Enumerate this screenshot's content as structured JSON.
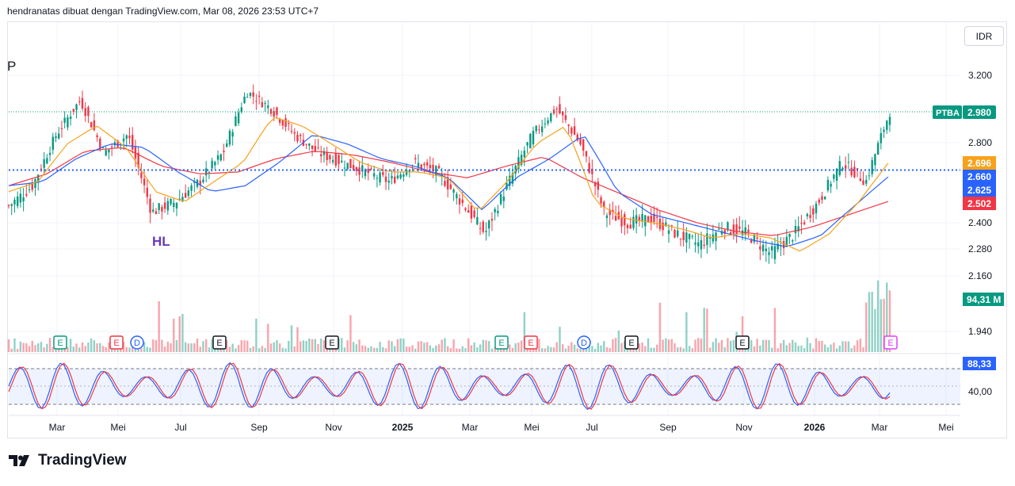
{
  "header": {
    "attribution": "hendranatas dibuat dengan TradingView.com, Mar 08, 2026 23:53 UTC+7"
  },
  "currency_button": "IDR",
  "footer": {
    "brand": "TradingView"
  },
  "colors": {
    "up": "#089981",
    "down": "#f23645",
    "ma_fast": "#f7a21b",
    "ma_mid": "#2962ff",
    "ma_slow": "#f23645",
    "oscillator_k": "#2962ff",
    "oscillator_d": "#f23645",
    "level_line": "#2962ff"
  },
  "chart_data": [
    {
      "type": "line",
      "title": "P",
      "series_label": "PTBA",
      "y_scale": "log",
      "y_ticks": [
        "3.200",
        "2.800",
        "2.400",
        "2.280",
        "2.160",
        "1.940"
      ],
      "x_ticks": [
        "Mar",
        "Mei",
        "Jul",
        "Sep",
        "Nov",
        "2025",
        "Mar",
        "Mei",
        "Jul",
        "Sep",
        "Nov",
        "2026",
        "Mar",
        "Mei"
      ],
      "price_labels": [
        {
          "text": "PTBA",
          "value": "2.980",
          "color": "#089981"
        },
        {
          "text": "",
          "value": "2.696",
          "color": "#f7a21b"
        },
        {
          "text": "",
          "value": "2.660",
          "color": "#2962ff"
        },
        {
          "text": "",
          "value": "2.625",
          "color": "#2962ff"
        },
        {
          "text": "",
          "value": "2.502",
          "color": "#f23645"
        },
        {
          "text": "",
          "value": "94,31 M",
          "color": "#089981"
        }
      ],
      "horizontal_line": 2660,
      "last_price": 2980,
      "annotations": [
        {
          "text": "HL",
          "color": "#673ab7"
        }
      ],
      "event_markers": [
        {
          "label": "E",
          "style": "earnings-up"
        },
        {
          "label": "E",
          "style": "earnings-down"
        },
        {
          "label": "D",
          "style": "dividend"
        },
        {
          "label": "E",
          "style": "earnings"
        },
        {
          "label": "E",
          "style": "earnings"
        },
        {
          "label": "E",
          "style": "earnings-up"
        },
        {
          "label": "E",
          "style": "earnings-down"
        },
        {
          "label": "D",
          "style": "dividend"
        },
        {
          "label": "E",
          "style": "earnings"
        },
        {
          "label": "E",
          "style": "earnings"
        },
        {
          "label": "E",
          "style": "earnings-future"
        }
      ],
      "close_anchors": [
        2480,
        2580,
        2850,
        3050,
        2750,
        2850,
        2450,
        2500,
        2600,
        2750,
        3100,
        3000,
        2850,
        2750,
        2700,
        2650,
        2600,
        2700,
        2650,
        2500,
        2350,
        2600,
        2850,
        3000,
        2800,
        2450,
        2400,
        2420,
        2350,
        2300,
        2380,
        2350,
        2260,
        2350,
        2500,
        2700,
        2600,
        2980
      ],
      "ma_fast_anchors": [
        2550,
        2600,
        2800,
        2900,
        2780,
        2550,
        2500,
        2600,
        2700,
        2950,
        2900,
        2800,
        2700,
        2650,
        2650,
        2620,
        2450,
        2600,
        2800,
        2900,
        2500,
        2420,
        2400,
        2370,
        2330,
        2350,
        2330,
        2270,
        2350,
        2500,
        2696
      ],
      "ma_mid_anchors": [
        2580,
        2600,
        2720,
        2800,
        2780,
        2650,
        2550,
        2580,
        2700,
        2850,
        2800,
        2720,
        2680,
        2620,
        2460,
        2620,
        2720,
        2850,
        2550,
        2440,
        2400,
        2360,
        2320,
        2290,
        2340,
        2480,
        2625
      ],
      "ma_slow_anchors": [
        2580,
        2640,
        2760,
        2780,
        2680,
        2640,
        2650,
        2720,
        2760,
        2740,
        2700,
        2650,
        2620,
        2680,
        2730,
        2620,
        2540,
        2460,
        2400,
        2360,
        2340,
        2380,
        2440,
        2502
      ],
      "oscillator": {
        "levels": [
          80,
          20
        ],
        "ticks": [
          "88,33",
          "40,00"
        ],
        "last_value": 88.33
      }
    }
  ]
}
